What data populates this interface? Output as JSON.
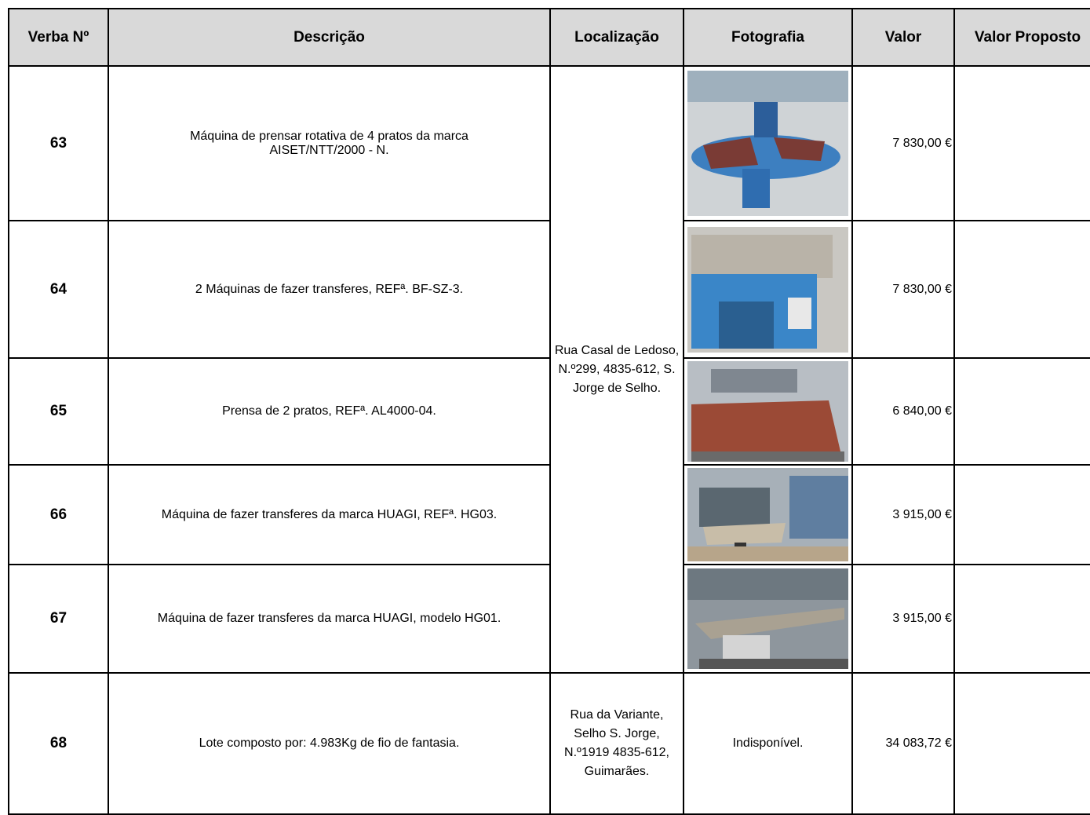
{
  "table": {
    "header": [
      "Verba Nº",
      "Descrição",
      "Localização",
      "Fotografia",
      "Valor",
      "Valor Proposto"
    ],
    "locations": [
      "Rua Casal de Ledoso, N.º299, 4835-612, S. Jorge de Selho.",
      "Rua da Variante, Selho S. Jorge, N.º1919 4835-612, Guimarães."
    ],
    "rows": [
      {
        "verba": "63",
        "descricao": "Máquina de prensar rotativa de 4 pratos da marca AISET/NTT/2000 - N.",
        "valor": "7 830,00 €"
      },
      {
        "verba": "64",
        "descricao": "2 Máquinas de fazer transferes, REFª. BF-SZ-3.",
        "valor": "7 830,00 €"
      },
      {
        "verba": "65",
        "descricao": "Prensa de 2 pratos, REFª. AL4000-04.",
        "valor": "6 840,00 €"
      },
      {
        "verba": "66",
        "descricao": "Máquina de fazer transferes da marca HUAGI, REFª. HG03.",
        "valor": "3 915,00 €"
      },
      {
        "verba": "67",
        "descricao": "Máquina de fazer transferes da marca HUAGI, modelo HG01.",
        "valor": "3 915,00 €"
      },
      {
        "verba": "68",
        "descricao": "Lote composto por: 4.983Kg de fio de fantasia.",
        "fotografia": "Indisponível.",
        "valor": "34 083,72 €"
      }
    ]
  }
}
